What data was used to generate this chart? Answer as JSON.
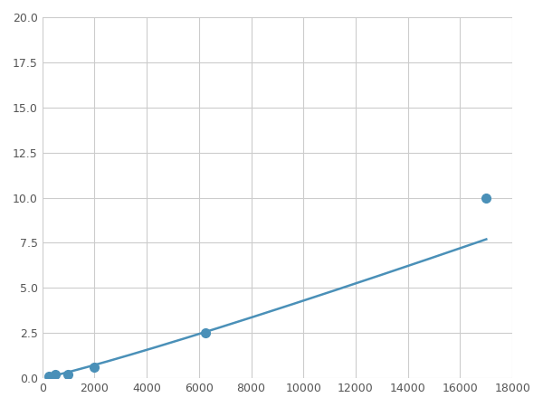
{
  "x_points": [
    250,
    500,
    1000,
    2000,
    6250,
    17000
  ],
  "y_points": [
    0.1,
    0.2,
    0.2,
    0.6,
    2.5,
    10.0
  ],
  "line_color": "#4a90b8",
  "marker_color": "#4a90b8",
  "marker_size": 7,
  "line_width": 1.8,
  "xlim": [
    0,
    18000
  ],
  "ylim": [
    0,
    20.0
  ],
  "xticks": [
    0,
    2000,
    4000,
    6000,
    8000,
    10000,
    12000,
    14000,
    16000,
    18000
  ],
  "yticks": [
    0.0,
    2.5,
    5.0,
    7.5,
    10.0,
    12.5,
    15.0,
    17.5,
    20.0
  ],
  "grid_color": "#cccccc",
  "background_color": "#ffffff",
  "figsize": [
    6.0,
    4.5
  ],
  "dpi": 100
}
